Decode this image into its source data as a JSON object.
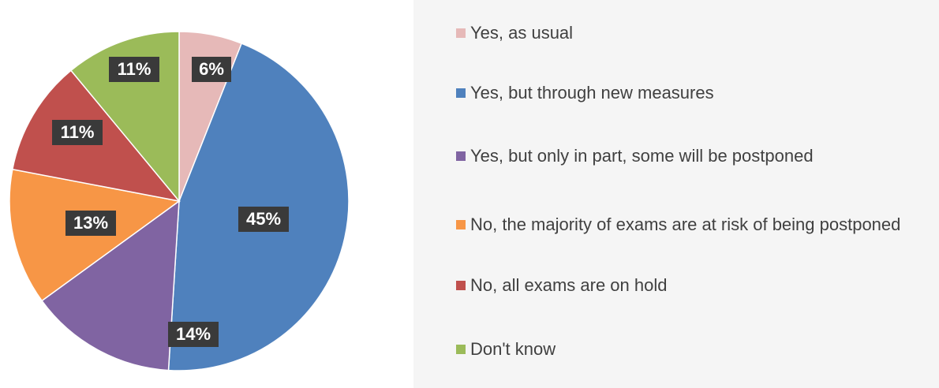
{
  "chart_data": {
    "type": "pie",
    "categories": [
      "Yes, as usual",
      "Yes, but through new measures",
      "Yes, but only in part, some will be postponed",
      "No, the majority of exams are at risk of being postponed",
      "No, all exams are on hold",
      "Don't know"
    ],
    "values": [
      6,
      45,
      14,
      13,
      11,
      11
    ],
    "value_labels": [
      "6%",
      "45%",
      "14%",
      "13%",
      "11%",
      "11%"
    ],
    "colors": [
      "#e6b9b8",
      "#4f81bd",
      "#8064a2",
      "#f79646",
      "#c0504d",
      "#9bbb59"
    ],
    "legend": "right"
  }
}
